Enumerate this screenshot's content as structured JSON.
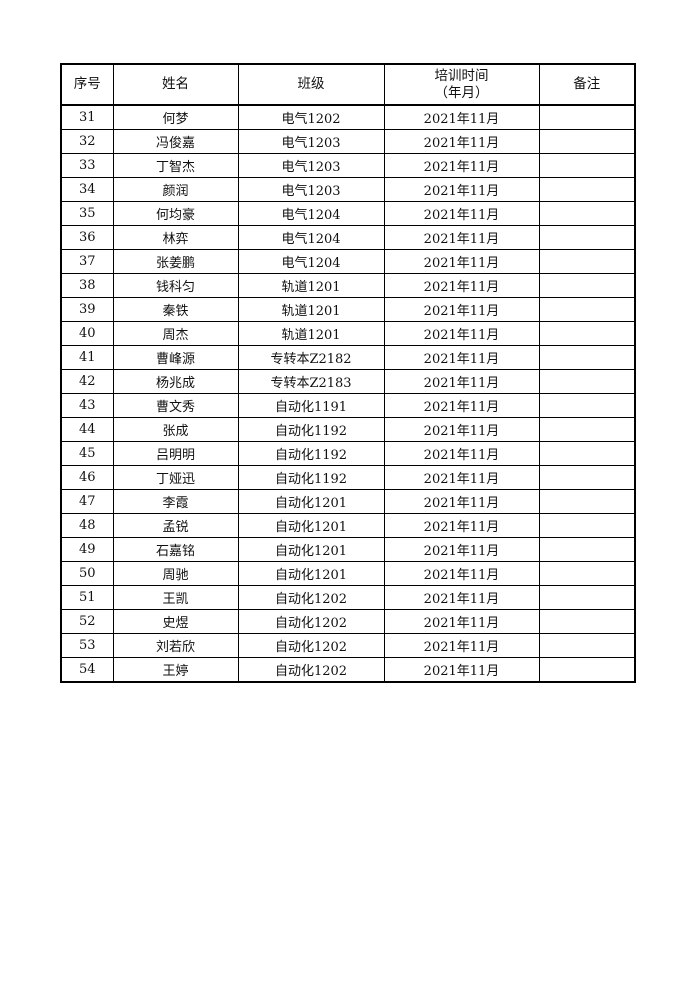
{
  "headers": {
    "index": "序号",
    "name": "姓名",
    "class": "班级",
    "time_line1": "培训时间",
    "time_line2": "（年月）",
    "note": "备注"
  },
  "rows": [
    [
      "31",
      "何梦",
      "电气1202",
      "2021年11月",
      ""
    ],
    [
      "32",
      "冯俊嘉",
      "电气1203",
      "2021年11月",
      ""
    ],
    [
      "33",
      "丁智杰",
      "电气1203",
      "2021年11月",
      ""
    ],
    [
      "34",
      "颜润",
      "电气1203",
      "2021年11月",
      ""
    ],
    [
      "35",
      "何均豪",
      "电气1204",
      "2021年11月",
      ""
    ],
    [
      "36",
      "林弈",
      "电气1204",
      "2021年11月",
      ""
    ],
    [
      "37",
      "张姜鹏",
      "电气1204",
      "2021年11月",
      ""
    ],
    [
      "38",
      "钱科匀",
      "轨道1201",
      "2021年11月",
      ""
    ],
    [
      "39",
      "秦铁",
      "轨道1201",
      "2021年11月",
      ""
    ],
    [
      "40",
      "周杰",
      "轨道1201",
      "2021年11月",
      ""
    ],
    [
      "41",
      "曹峰源",
      "专转本Z2182",
      "2021年11月",
      ""
    ],
    [
      "42",
      "杨兆成",
      "专转本Z2183",
      "2021年11月",
      ""
    ],
    [
      "43",
      "曹文秀",
      "自动化1191",
      "2021年11月",
      ""
    ],
    [
      "44",
      "张成",
      "自动化1192",
      "2021年11月",
      ""
    ],
    [
      "45",
      "吕明明",
      "自动化1192",
      "2021年11月",
      ""
    ],
    [
      "46",
      "丁娅迅",
      "自动化1192",
      "2021年11月",
      ""
    ],
    [
      "47",
      "李霞",
      "自动化1201",
      "2021年11月",
      ""
    ],
    [
      "48",
      "孟锐",
      "自动化1201",
      "2021年11月",
      ""
    ],
    [
      "49",
      "石嘉铭",
      "自动化1201",
      "2021年11月",
      ""
    ],
    [
      "50",
      "周驰",
      "自动化1201",
      "2021年11月",
      ""
    ],
    [
      "51",
      "王凯",
      "自动化1202",
      "2021年11月",
      ""
    ],
    [
      "52",
      "史煜",
      "自动化1202",
      "2021年11月",
      ""
    ],
    [
      "53",
      "刘若欣",
      "自动化1202",
      "2021年11月",
      ""
    ],
    [
      "54",
      "王婷",
      "自动化1202",
      "2021年11月",
      ""
    ]
  ]
}
